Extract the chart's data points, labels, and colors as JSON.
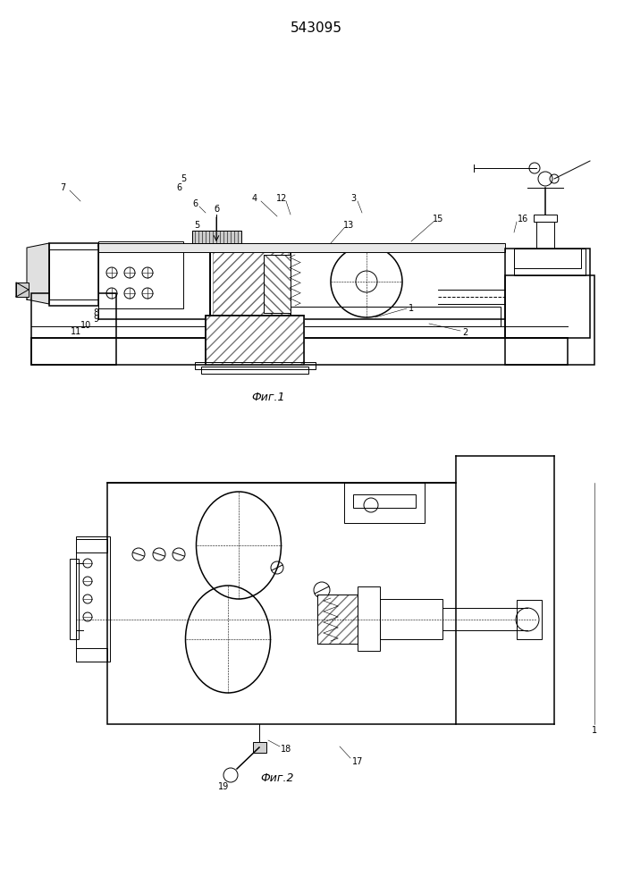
{
  "title": "543095",
  "fig1_caption": "Фиг.1",
  "fig2_caption": "Фиг.2",
  "line_color": "#000000",
  "bg_color": "#ffffff",
  "lw": 0.7,
  "lw2": 1.1,
  "lw_thin": 0.4
}
